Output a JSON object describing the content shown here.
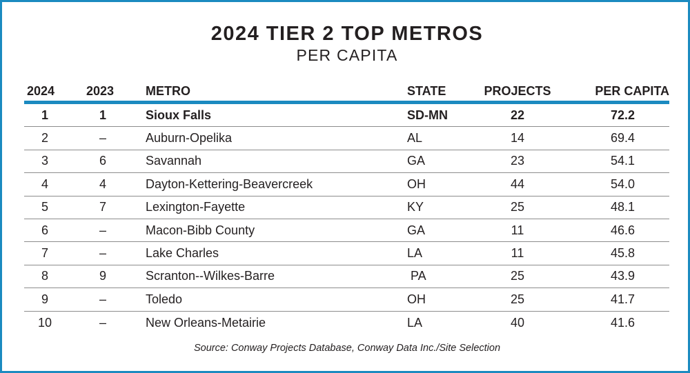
{
  "title": "2024 TIER 2 TOP METROS",
  "subtitle": "PER CAPITA",
  "columns": {
    "rank_2024": "2024",
    "rank_2023": "2023",
    "metro": "METRO",
    "state": "STATE",
    "projects": "PROJECTS",
    "per_capita": "PER CAPITA"
  },
  "rows": [
    {
      "rank_2024": "1",
      "rank_2023": "1",
      "metro": "Sioux Falls",
      "state": "SD-MN",
      "projects": "22",
      "per_capita": "72.2"
    },
    {
      "rank_2024": "2",
      "rank_2023": "–",
      "metro": "Auburn-Opelika",
      "state": "AL",
      "projects": "14",
      "per_capita": "69.4"
    },
    {
      "rank_2024": "3",
      "rank_2023": "6",
      "metro": "Savannah",
      "state": "GA",
      "projects": "23",
      "per_capita": "54.1"
    },
    {
      "rank_2024": "4",
      "rank_2023": "4",
      "metro": "Dayton-Kettering-Beavercreek",
      "state": "OH",
      "projects": "44",
      "per_capita": "54.0"
    },
    {
      "rank_2024": "5",
      "rank_2023": "7",
      "metro": "Lexington-Fayette",
      "state": "KY",
      "projects": "25",
      "per_capita": "48.1"
    },
    {
      "rank_2024": "6",
      "rank_2023": "–",
      "metro": "Macon-Bibb County",
      "state": "GA",
      "projects": "11",
      "per_capita": "46.6"
    },
    {
      "rank_2024": "7",
      "rank_2023": "–",
      "metro": "Lake Charles",
      "state": "LA",
      "projects": "11",
      "per_capita": "45.8"
    },
    {
      "rank_2024": "8",
      "rank_2023": "9",
      "metro": "Scranton--Wilkes-Barre",
      "state": " PA",
      "projects": "25",
      "per_capita": "43.9"
    },
    {
      "rank_2024": "9",
      "rank_2023": "–",
      "metro": "Toledo",
      "state": "OH",
      "projects": "25",
      "per_capita": "41.7"
    },
    {
      "rank_2024": "10",
      "rank_2023": "–",
      "metro": "New Orleans-Metairie",
      "state": "LA",
      "projects": "40",
      "per_capita": "41.6"
    }
  ],
  "source": "Source: Conway Projects Database, Conway Data Inc./Site Selection",
  "colors": {
    "accent": "#1b8ac0",
    "text": "#231f20",
    "rule": "#8c8c8c"
  }
}
